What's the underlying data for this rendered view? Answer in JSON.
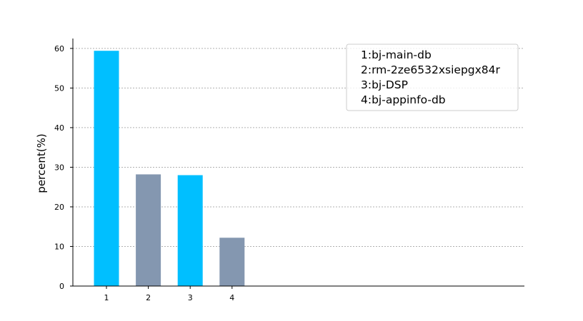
{
  "chart_data": {
    "type": "bar",
    "categories": [
      "1",
      "2",
      "3",
      "4"
    ],
    "values": [
      59.4,
      28.2,
      28.0,
      12.2
    ],
    "colors": [
      "#00bfff",
      "#8497b0",
      "#00bfff",
      "#8497b0"
    ],
    "title": "",
    "xlabel": "",
    "ylabel": "percent(%)",
    "ylim": [
      0,
      62.5
    ],
    "yticks": [
      0,
      10,
      20,
      30,
      40,
      50,
      60
    ],
    "grid": "horizontal dotted",
    "legend": {
      "placement": "top-right",
      "entries": [
        "1:bj-main-db",
        "2:rm-2ze6532xsiepgx84r",
        "3:bj-DSP",
        "4:bj-appinfo-db"
      ]
    }
  }
}
